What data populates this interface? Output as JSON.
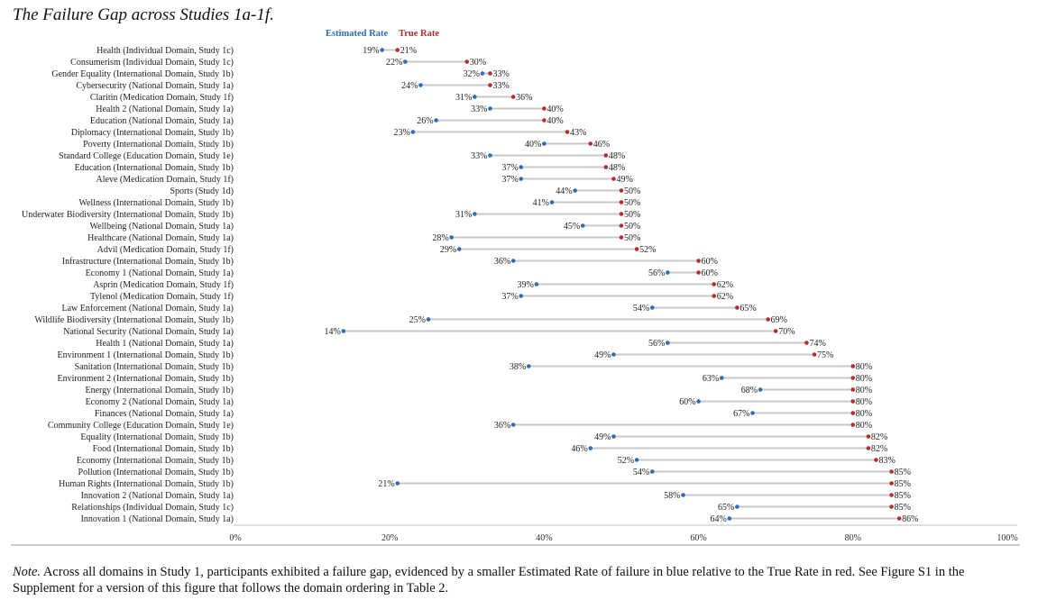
{
  "title": "The Failure Gap across Studies 1a-1f.",
  "note": {
    "label": "Note.",
    "text": " Across all domains in Study 1, participants exhibited a failure gap, evidenced by a smaller Estimated Rate of failure in blue relative to the True Rate in red. See Figure S1 in the Supplement for a version of this figure that follows the domain ordering in Table 2."
  },
  "colors": {
    "estimated": "#2e6db4",
    "true": "#b32d2d",
    "connector": "#c8c8c8",
    "axis": "#bfbfbf"
  },
  "chart_data": {
    "type": "dumbbell",
    "title": "The Failure Gap across Studies 1a-1f.",
    "legend": [
      "Estimated Rate",
      "True Rate"
    ],
    "legend_position": "top",
    "xlim": [
      0,
      100
    ],
    "x_ticks": [
      "0%",
      "20%",
      "40%",
      "60%",
      "80%",
      "100%"
    ],
    "x_tick_values": [
      0,
      20,
      40,
      60,
      80,
      100
    ],
    "series": [
      {
        "name": "Estimated Rate",
        "color": "#2e6db4"
      },
      {
        "name": "True Rate",
        "color": "#b32d2d"
      }
    ],
    "rows": [
      {
        "label": "Health (Individual Domain, Study 1c)",
        "estimated": 19,
        "true": 21
      },
      {
        "label": "Consumerism (Individual Domain, Study 1c)",
        "estimated": 22,
        "true": 30
      },
      {
        "label": "Gender Equality (International Domain, Study 1b)",
        "estimated": 32,
        "true": 33
      },
      {
        "label": "Cybersecurity (National Domain, Study 1a)",
        "estimated": 24,
        "true": 33
      },
      {
        "label": "Claritin (Medication Domain, Study 1f)",
        "estimated": 31,
        "true": 36
      },
      {
        "label": "Health 2 (National Domain, Study 1a)",
        "estimated": 33,
        "true": 40
      },
      {
        "label": "Education (National Domain, Study 1a)",
        "estimated": 26,
        "true": 40
      },
      {
        "label": "Diplomacy (International Domain, Study 1b)",
        "estimated": 23,
        "true": 43
      },
      {
        "label": "Poverty (International Domain, Study 1b)",
        "estimated": 40,
        "true": 46
      },
      {
        "label": "Standard College (Education Domain, Study 1e)",
        "estimated": 33,
        "true": 48
      },
      {
        "label": "Education (International Domain, Study 1b)",
        "estimated": 37,
        "true": 48
      },
      {
        "label": "Aleve (Medication Domain, Study 1f)",
        "estimated": 37,
        "true": 49
      },
      {
        "label": "Sports (Study 1d)",
        "estimated": 44,
        "true": 50
      },
      {
        "label": "Wellness (International Domain, Study 1b)",
        "estimated": 41,
        "true": 50
      },
      {
        "label": "Underwater Biodiversity (International Domain, Study 1b)",
        "estimated": 31,
        "true": 50
      },
      {
        "label": "Wellbeing (National Domain, Study 1a)",
        "estimated": 45,
        "true": 50
      },
      {
        "label": "Healthcare (National Domain, Study 1a)",
        "estimated": 28,
        "true": 50
      },
      {
        "label": "Advil (Medication Domain, Study 1f)",
        "estimated": 29,
        "true": 52
      },
      {
        "label": "Infrastructure (International Domain, Study 1b)",
        "estimated": 36,
        "true": 60
      },
      {
        "label": "Economy 1 (National Domain, Study 1a)",
        "estimated": 56,
        "true": 60
      },
      {
        "label": "Asprin (Medication Domain, Study 1f)",
        "estimated": 39,
        "true": 62
      },
      {
        "label": "Tylenol (Medication Domain, Study 1f)",
        "estimated": 37,
        "true": 62
      },
      {
        "label": "Law Enforcement (National Domain, Study 1a)",
        "estimated": 54,
        "true": 65
      },
      {
        "label": "Wildlife Biodiversity (International Domain, Study 1b)",
        "estimated": 25,
        "true": 69
      },
      {
        "label": "National Security (National Domain, Study 1a)",
        "estimated": 14,
        "true": 70
      },
      {
        "label": "Health 1 (National Domain, Study 1a)",
        "estimated": 56,
        "true": 74
      },
      {
        "label": "Environment 1 (International Domain, Study 1b)",
        "estimated": 49,
        "true": 75
      },
      {
        "label": "Sanitation (International Domain, Study 1b)",
        "estimated": 38,
        "true": 80
      },
      {
        "label": "Environment 2 (International Domain, Study 1b)",
        "estimated": 63,
        "true": 80
      },
      {
        "label": "Energy (International Domain, Study 1b)",
        "estimated": 68,
        "true": 80
      },
      {
        "label": "Economy 2 (National Domain, Study 1a)",
        "estimated": 60,
        "true": 80
      },
      {
        "label": "Finances (National Domain, Study 1a)",
        "estimated": 67,
        "true": 80
      },
      {
        "label": "Community College (Education Domain, Study 1e)",
        "estimated": 36,
        "true": 80
      },
      {
        "label": "Equality (International Domain, Study 1b)",
        "estimated": 49,
        "true": 82
      },
      {
        "label": "Food (International Domain, Study 1b)",
        "estimated": 46,
        "true": 82
      },
      {
        "label": "Economy (International Domain, Study 1b)",
        "estimated": 52,
        "true": 83
      },
      {
        "label": "Pollution (International Domain, Study 1b)",
        "estimated": 54,
        "true": 85
      },
      {
        "label": "Human Rights (International Domain, Study 1b)",
        "estimated": 21,
        "true": 85
      },
      {
        "label": "Innovation 2 (National Domain, Study 1a)",
        "estimated": 58,
        "true": 85
      },
      {
        "label": "Relationships (Individual Domain, Study 1c)",
        "estimated": 65,
        "true": 85
      },
      {
        "label": "Innovation 1 (National Domain, Study 1a)",
        "estimated": 64,
        "true": 86
      }
    ]
  }
}
